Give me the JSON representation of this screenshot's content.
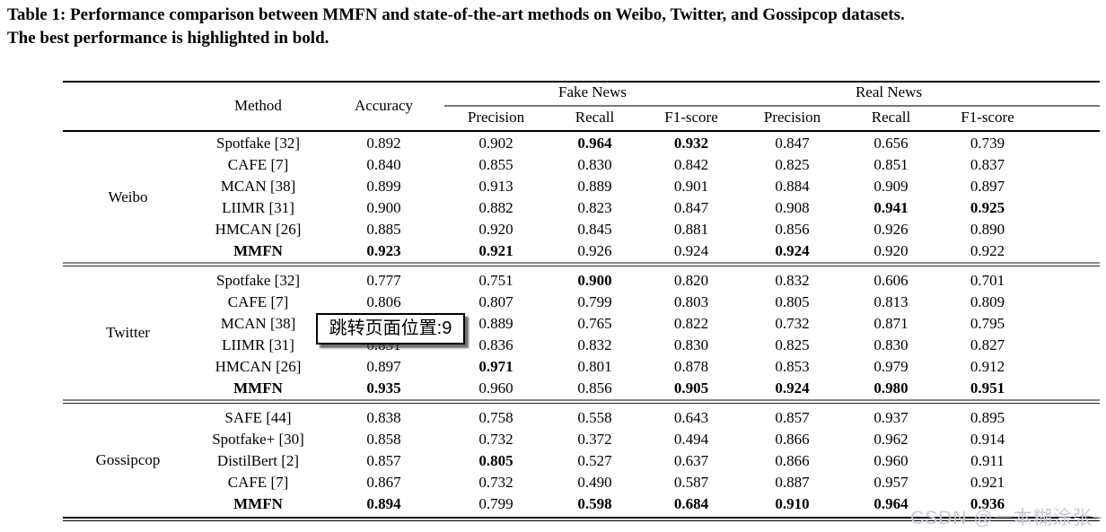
{
  "caption": {
    "line1": "Table 1: Performance comparison between MMFN and state-of-the-art methods on Weibo, Twitter, and Gossipcop datasets.",
    "line2": "The best performance is highlighted in bold."
  },
  "tooltip": {
    "text": "跳转页面位置:9"
  },
  "watermark": {
    "text": "CSDN @一本糊涂张~",
    "color": "#c9c9d6"
  },
  "table": {
    "columns": {
      "method": "Method",
      "accuracy": "Accuracy",
      "fake_news": "Fake News",
      "real_news": "Real News",
      "precision": "Precision",
      "recall": "Recall",
      "f1": "F1-score"
    },
    "sections": [
      {
        "dataset": "Weibo",
        "rows": [
          {
            "method": "Spotfake [32]",
            "method_bold": false,
            "values": [
              {
                "t": "0.892",
                "b": false
              },
              {
                "t": "0.902",
                "b": false
              },
              {
                "t": "0.964",
                "b": true
              },
              {
                "t": "0.932",
                "b": true
              },
              {
                "t": "0.847",
                "b": false
              },
              {
                "t": "0.656",
                "b": false
              },
              {
                "t": "0.739",
                "b": false
              }
            ]
          },
          {
            "method": "CAFE [7]",
            "method_bold": false,
            "values": [
              {
                "t": "0.840",
                "b": false
              },
              {
                "t": "0.855",
                "b": false
              },
              {
                "t": "0.830",
                "b": false
              },
              {
                "t": "0.842",
                "b": false
              },
              {
                "t": "0.825",
                "b": false
              },
              {
                "t": "0.851",
                "b": false
              },
              {
                "t": "0.837",
                "b": false
              }
            ]
          },
          {
            "method": "MCAN [38]",
            "method_bold": false,
            "values": [
              {
                "t": "0.899",
                "b": false
              },
              {
                "t": "0.913",
                "b": false
              },
              {
                "t": "0.889",
                "b": false
              },
              {
                "t": "0.901",
                "b": false
              },
              {
                "t": "0.884",
                "b": false
              },
              {
                "t": "0.909",
                "b": false
              },
              {
                "t": "0.897",
                "b": false
              }
            ]
          },
          {
            "method": "LIIMR [31]",
            "method_bold": false,
            "values": [
              {
                "t": "0.900",
                "b": false
              },
              {
                "t": "0.882",
                "b": false
              },
              {
                "t": "0.823",
                "b": false
              },
              {
                "t": "0.847",
                "b": false
              },
              {
                "t": "0.908",
                "b": false
              },
              {
                "t": "0.941",
                "b": true
              },
              {
                "t": "0.925",
                "b": true
              }
            ]
          },
          {
            "method": "HMCAN [26]",
            "method_bold": false,
            "values": [
              {
                "t": "0.885",
                "b": false
              },
              {
                "t": "0.920",
                "b": false
              },
              {
                "t": "0.845",
                "b": false
              },
              {
                "t": "0.881",
                "b": false
              },
              {
                "t": "0.856",
                "b": false
              },
              {
                "t": "0.926",
                "b": false
              },
              {
                "t": "0.890",
                "b": false
              }
            ]
          },
          {
            "method": "MMFN",
            "method_bold": true,
            "values": [
              {
                "t": "0.923",
                "b": true
              },
              {
                "t": "0.921",
                "b": true
              },
              {
                "t": "0.926",
                "b": false
              },
              {
                "t": "0.924",
                "b": false
              },
              {
                "t": "0.924",
                "b": true
              },
              {
                "t": "0.920",
                "b": false
              },
              {
                "t": "0.922",
                "b": false
              }
            ]
          }
        ]
      },
      {
        "dataset": "Twitter",
        "rows": [
          {
            "method": "Spotfake [32]",
            "method_bold": false,
            "values": [
              {
                "t": "0.777",
                "b": false
              },
              {
                "t": "0.751",
                "b": false
              },
              {
                "t": "0.900",
                "b": true
              },
              {
                "t": "0.820",
                "b": false
              },
              {
                "t": "0.832",
                "b": false
              },
              {
                "t": "0.606",
                "b": false
              },
              {
                "t": "0.701",
                "b": false
              }
            ]
          },
          {
            "method": "CAFE [7]",
            "method_bold": false,
            "values": [
              {
                "t": "0.806",
                "b": false
              },
              {
                "t": "0.807",
                "b": false
              },
              {
                "t": "0.799",
                "b": false
              },
              {
                "t": "0.803",
                "b": false
              },
              {
                "t": "0.805",
                "b": false
              },
              {
                "t": "0.813",
                "b": false
              },
              {
                "t": "0.809",
                "b": false
              }
            ]
          },
          {
            "method": "MCAN [38]",
            "method_bold": false,
            "values": [
              {
                "t": "",
                "b": false
              },
              {
                "t": "0.889",
                "b": false
              },
              {
                "t": "0.765",
                "b": false
              },
              {
                "t": "0.822",
                "b": false
              },
              {
                "t": "0.732",
                "b": false
              },
              {
                "t": "0.871",
                "b": false
              },
              {
                "t": "0.795",
                "b": false
              }
            ]
          },
          {
            "method": "LIIMR [31]",
            "method_bold": false,
            "values": [
              {
                "t": "0.831",
                "b": false
              },
              {
                "t": "0.836",
                "b": false
              },
              {
                "t": "0.832",
                "b": false
              },
              {
                "t": "0.830",
                "b": false
              },
              {
                "t": "0.825",
                "b": false
              },
              {
                "t": "0.830",
                "b": false
              },
              {
                "t": "0.827",
                "b": false
              }
            ]
          },
          {
            "method": "HMCAN [26]",
            "method_bold": false,
            "values": [
              {
                "t": "0.897",
                "b": false
              },
              {
                "t": "0.971",
                "b": true
              },
              {
                "t": "0.801",
                "b": false
              },
              {
                "t": "0.878",
                "b": false
              },
              {
                "t": "0.853",
                "b": false
              },
              {
                "t": "0.979",
                "b": false
              },
              {
                "t": "0.912",
                "b": false
              }
            ]
          },
          {
            "method": "MMFN",
            "method_bold": true,
            "values": [
              {
                "t": "0.935",
                "b": true
              },
              {
                "t": "0.960",
                "b": false
              },
              {
                "t": "0.856",
                "b": false
              },
              {
                "t": "0.905",
                "b": true
              },
              {
                "t": "0.924",
                "b": true
              },
              {
                "t": "0.980",
                "b": true
              },
              {
                "t": "0.951",
                "b": true
              }
            ]
          }
        ]
      },
      {
        "dataset": "Gossipcop",
        "rows": [
          {
            "method": "SAFE [44]",
            "method_bold": false,
            "values": [
              {
                "t": "0.838",
                "b": false
              },
              {
                "t": "0.758",
                "b": false
              },
              {
                "t": "0.558",
                "b": false
              },
              {
                "t": "0.643",
                "b": false
              },
              {
                "t": "0.857",
                "b": false
              },
              {
                "t": "0.937",
                "b": false
              },
              {
                "t": "0.895",
                "b": false
              }
            ]
          },
          {
            "method": "Spotfake+ [30]",
            "method_bold": false,
            "values": [
              {
                "t": "0.858",
                "b": false
              },
              {
                "t": "0.732",
                "b": false
              },
              {
                "t": "0.372",
                "b": false
              },
              {
                "t": "0.494",
                "b": false
              },
              {
                "t": "0.866",
                "b": false
              },
              {
                "t": "0.962",
                "b": false
              },
              {
                "t": "0.914",
                "b": false
              }
            ]
          },
          {
            "method": "DistilBert [2]",
            "method_bold": false,
            "values": [
              {
                "t": "0.857",
                "b": false
              },
              {
                "t": "0.805",
                "b": true
              },
              {
                "t": "0.527",
                "b": false
              },
              {
                "t": "0.637",
                "b": false
              },
              {
                "t": "0.866",
                "b": false
              },
              {
                "t": "0.960",
                "b": false
              },
              {
                "t": "0.911",
                "b": false
              }
            ]
          },
          {
            "method": "CAFE [7]",
            "method_bold": false,
            "values": [
              {
                "t": "0.867",
                "b": false
              },
              {
                "t": "0.732",
                "b": false
              },
              {
                "t": "0.490",
                "b": false
              },
              {
                "t": "0.587",
                "b": false
              },
              {
                "t": "0.887",
                "b": false
              },
              {
                "t": "0.957",
                "b": false
              },
              {
                "t": "0.921",
                "b": false
              }
            ]
          },
          {
            "method": "MMFN",
            "method_bold": true,
            "values": [
              {
                "t": "0.894",
                "b": true
              },
              {
                "t": "0.799",
                "b": false
              },
              {
                "t": "0.598",
                "b": true
              },
              {
                "t": "0.684",
                "b": true
              },
              {
                "t": "0.910",
                "b": true
              },
              {
                "t": "0.964",
                "b": true
              },
              {
                "t": "0.936",
                "b": true
              }
            ]
          }
        ]
      }
    ]
  }
}
